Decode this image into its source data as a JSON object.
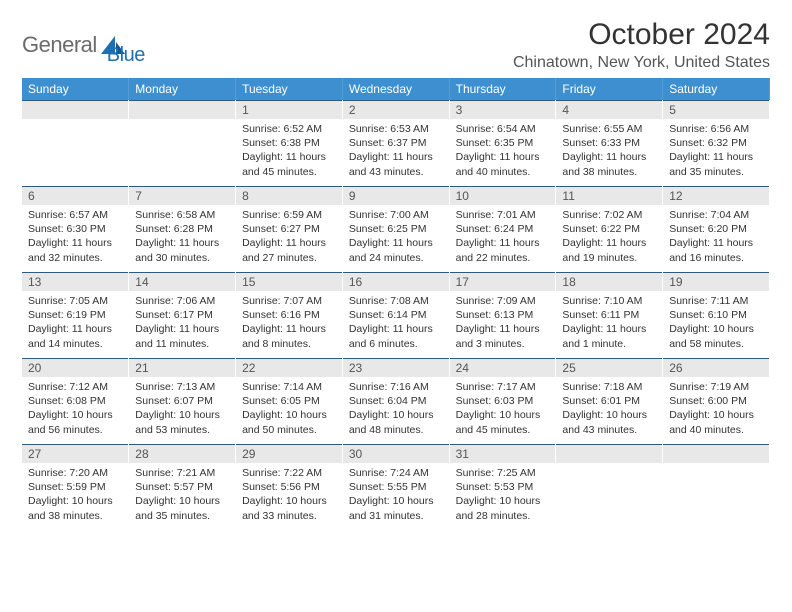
{
  "brand": {
    "word1": "General",
    "word2": "Blue"
  },
  "title": "October 2024",
  "location": "Chinatown, New York, United States",
  "style": {
    "header_bg": "#3d8fcf",
    "header_text": "#ffffff",
    "daynum_bg": "#e8e8e8",
    "daynum_border": "#2d5a82",
    "page_bg": "#ffffff",
    "body_text": "#333",
    "logo_gray": "#6b6b6b",
    "logo_blue": "#1f6fb0"
  },
  "weekdays": [
    "Sunday",
    "Monday",
    "Tuesday",
    "Wednesday",
    "Thursday",
    "Friday",
    "Saturday"
  ],
  "weeks": [
    [
      {
        "n": "",
        "lines": []
      },
      {
        "n": "",
        "lines": []
      },
      {
        "n": "1",
        "lines": [
          "Sunrise: 6:52 AM",
          "Sunset: 6:38 PM",
          "Daylight: 11 hours and 45 minutes."
        ]
      },
      {
        "n": "2",
        "lines": [
          "Sunrise: 6:53 AM",
          "Sunset: 6:37 PM",
          "Daylight: 11 hours and 43 minutes."
        ]
      },
      {
        "n": "3",
        "lines": [
          "Sunrise: 6:54 AM",
          "Sunset: 6:35 PM",
          "Daylight: 11 hours and 40 minutes."
        ]
      },
      {
        "n": "4",
        "lines": [
          "Sunrise: 6:55 AM",
          "Sunset: 6:33 PM",
          "Daylight: 11 hours and 38 minutes."
        ]
      },
      {
        "n": "5",
        "lines": [
          "Sunrise: 6:56 AM",
          "Sunset: 6:32 PM",
          "Daylight: 11 hours and 35 minutes."
        ]
      }
    ],
    [
      {
        "n": "6",
        "lines": [
          "Sunrise: 6:57 AM",
          "Sunset: 6:30 PM",
          "Daylight: 11 hours and 32 minutes."
        ]
      },
      {
        "n": "7",
        "lines": [
          "Sunrise: 6:58 AM",
          "Sunset: 6:28 PM",
          "Daylight: 11 hours and 30 minutes."
        ]
      },
      {
        "n": "8",
        "lines": [
          "Sunrise: 6:59 AM",
          "Sunset: 6:27 PM",
          "Daylight: 11 hours and 27 minutes."
        ]
      },
      {
        "n": "9",
        "lines": [
          "Sunrise: 7:00 AM",
          "Sunset: 6:25 PM",
          "Daylight: 11 hours and 24 minutes."
        ]
      },
      {
        "n": "10",
        "lines": [
          "Sunrise: 7:01 AM",
          "Sunset: 6:24 PM",
          "Daylight: 11 hours and 22 minutes."
        ]
      },
      {
        "n": "11",
        "lines": [
          "Sunrise: 7:02 AM",
          "Sunset: 6:22 PM",
          "Daylight: 11 hours and 19 minutes."
        ]
      },
      {
        "n": "12",
        "lines": [
          "Sunrise: 7:04 AM",
          "Sunset: 6:20 PM",
          "Daylight: 11 hours and 16 minutes."
        ]
      }
    ],
    [
      {
        "n": "13",
        "lines": [
          "Sunrise: 7:05 AM",
          "Sunset: 6:19 PM",
          "Daylight: 11 hours and 14 minutes."
        ]
      },
      {
        "n": "14",
        "lines": [
          "Sunrise: 7:06 AM",
          "Sunset: 6:17 PM",
          "Daylight: 11 hours and 11 minutes."
        ]
      },
      {
        "n": "15",
        "lines": [
          "Sunrise: 7:07 AM",
          "Sunset: 6:16 PM",
          "Daylight: 11 hours and 8 minutes."
        ]
      },
      {
        "n": "16",
        "lines": [
          "Sunrise: 7:08 AM",
          "Sunset: 6:14 PM",
          "Daylight: 11 hours and 6 minutes."
        ]
      },
      {
        "n": "17",
        "lines": [
          "Sunrise: 7:09 AM",
          "Sunset: 6:13 PM",
          "Daylight: 11 hours and 3 minutes."
        ]
      },
      {
        "n": "18",
        "lines": [
          "Sunrise: 7:10 AM",
          "Sunset: 6:11 PM",
          "Daylight: 11 hours and 1 minute."
        ]
      },
      {
        "n": "19",
        "lines": [
          "Sunrise: 7:11 AM",
          "Sunset: 6:10 PM",
          "Daylight: 10 hours and 58 minutes."
        ]
      }
    ],
    [
      {
        "n": "20",
        "lines": [
          "Sunrise: 7:12 AM",
          "Sunset: 6:08 PM",
          "Daylight: 10 hours and 56 minutes."
        ]
      },
      {
        "n": "21",
        "lines": [
          "Sunrise: 7:13 AM",
          "Sunset: 6:07 PM",
          "Daylight: 10 hours and 53 minutes."
        ]
      },
      {
        "n": "22",
        "lines": [
          "Sunrise: 7:14 AM",
          "Sunset: 6:05 PM",
          "Daylight: 10 hours and 50 minutes."
        ]
      },
      {
        "n": "23",
        "lines": [
          "Sunrise: 7:16 AM",
          "Sunset: 6:04 PM",
          "Daylight: 10 hours and 48 minutes."
        ]
      },
      {
        "n": "24",
        "lines": [
          "Sunrise: 7:17 AM",
          "Sunset: 6:03 PM",
          "Daylight: 10 hours and 45 minutes."
        ]
      },
      {
        "n": "25",
        "lines": [
          "Sunrise: 7:18 AM",
          "Sunset: 6:01 PM",
          "Daylight: 10 hours and 43 minutes."
        ]
      },
      {
        "n": "26",
        "lines": [
          "Sunrise: 7:19 AM",
          "Sunset: 6:00 PM",
          "Daylight: 10 hours and 40 minutes."
        ]
      }
    ],
    [
      {
        "n": "27",
        "lines": [
          "Sunrise: 7:20 AM",
          "Sunset: 5:59 PM",
          "Daylight: 10 hours and 38 minutes."
        ]
      },
      {
        "n": "28",
        "lines": [
          "Sunrise: 7:21 AM",
          "Sunset: 5:57 PM",
          "Daylight: 10 hours and 35 minutes."
        ]
      },
      {
        "n": "29",
        "lines": [
          "Sunrise: 7:22 AM",
          "Sunset: 5:56 PM",
          "Daylight: 10 hours and 33 minutes."
        ]
      },
      {
        "n": "30",
        "lines": [
          "Sunrise: 7:24 AM",
          "Sunset: 5:55 PM",
          "Daylight: 10 hours and 31 minutes."
        ]
      },
      {
        "n": "31",
        "lines": [
          "Sunrise: 7:25 AM",
          "Sunset: 5:53 PM",
          "Daylight: 10 hours and 28 minutes."
        ]
      },
      {
        "n": "",
        "lines": []
      },
      {
        "n": "",
        "lines": []
      }
    ]
  ]
}
